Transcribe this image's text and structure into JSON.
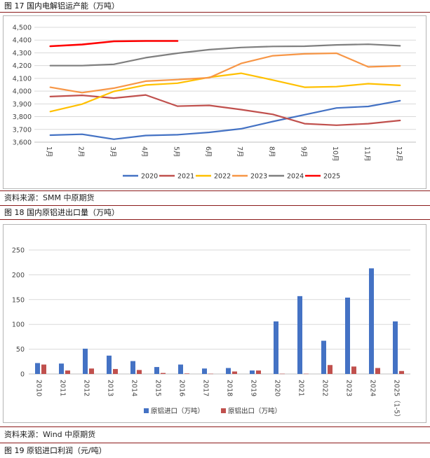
{
  "fig17": {
    "caption": "图 17  国内电解铝运产能（万吨）",
    "source": "资料来源：SMM 中原期货",
    "chart_data": {
      "type": "line",
      "title": "",
      "categories": [
        "1月",
        "2月",
        "3月",
        "4月",
        "5月",
        "6月",
        "7月",
        "8月",
        "9月",
        "10月",
        "11月",
        "12月"
      ],
      "ylim": [
        3600,
        4500
      ],
      "yticks": [
        "3,600",
        "3,700",
        "3,800",
        "3,900",
        "4,000",
        "4,100",
        "4,200",
        "4,300",
        "4,400",
        "4,500"
      ],
      "grid": true,
      "legend": "bottom",
      "series": [
        {
          "name": "2020",
          "color": "#4472c4",
          "values": [
            3655,
            3662,
            3623,
            3652,
            3658,
            3677,
            3705,
            3762,
            3815,
            3868,
            3880,
            3925
          ]
        },
        {
          "name": "2021",
          "color": "#c0504d",
          "values": [
            3957,
            3967,
            3945,
            3970,
            3882,
            3888,
            3855,
            3818,
            3745,
            3733,
            3745,
            3770
          ]
        },
        {
          "name": "2022",
          "color": "#ffc000",
          "values": [
            3840,
            3898,
            3998,
            4048,
            4062,
            4108,
            4140,
            4087,
            4030,
            4035,
            4058,
            4045
          ]
        },
        {
          "name": "2023",
          "color": "#f79646",
          "values": [
            4030,
            3988,
            4023,
            4078,
            4090,
            4105,
            4217,
            4277,
            4292,
            4297,
            4190,
            4198
          ]
        },
        {
          "name": "2024",
          "color": "#7f7f7f",
          "values": [
            4200,
            4200,
            4210,
            4262,
            4297,
            4325,
            4342,
            4350,
            4352,
            4362,
            4367,
            4355
          ]
        },
        {
          "name": "2025",
          "color": "#ff0000",
          "values": [
            4352,
            4365,
            4390,
            4393,
            4393,
            null,
            null,
            null,
            null,
            null,
            null,
            null
          ]
        }
      ]
    }
  },
  "fig18": {
    "caption": "图 18  国内原铝进出口量（万吨）",
    "source": "资料来源：Wind 中原期货",
    "chart_data": {
      "type": "bar",
      "title": "",
      "categories": [
        "2010",
        "2011",
        "2012",
        "2013",
        "2014",
        "2015",
        "2016",
        "2017",
        "2018",
        "2019",
        "2020",
        "2021",
        "2022",
        "2023",
        "2024",
        "2025（1-5）"
      ],
      "ylim": [
        0,
        250
      ],
      "yticks": [
        "0",
        "50",
        "100",
        "150",
        "200",
        "250"
      ],
      "grid": true,
      "legend": "bottom",
      "series": [
        {
          "name": "原铝进口（万吨）",
          "color": "#4472c4",
          "values": [
            22,
            21,
            51,
            37,
            26,
            14,
            19,
            11,
            12,
            7,
            106,
            157,
            67,
            154,
            213,
            106
          ]
        },
        {
          "name": "原铝出口（万吨）",
          "color": "#c0504d",
          "values": [
            19,
            7,
            11,
            10,
            8,
            2,
            1,
            0.5,
            5,
            7,
            0.5,
            0.5,
            18,
            15,
            12,
            6
          ]
        }
      ]
    }
  },
  "fig19": {
    "caption": "图 19  原铝进口利润（元/吨）"
  }
}
